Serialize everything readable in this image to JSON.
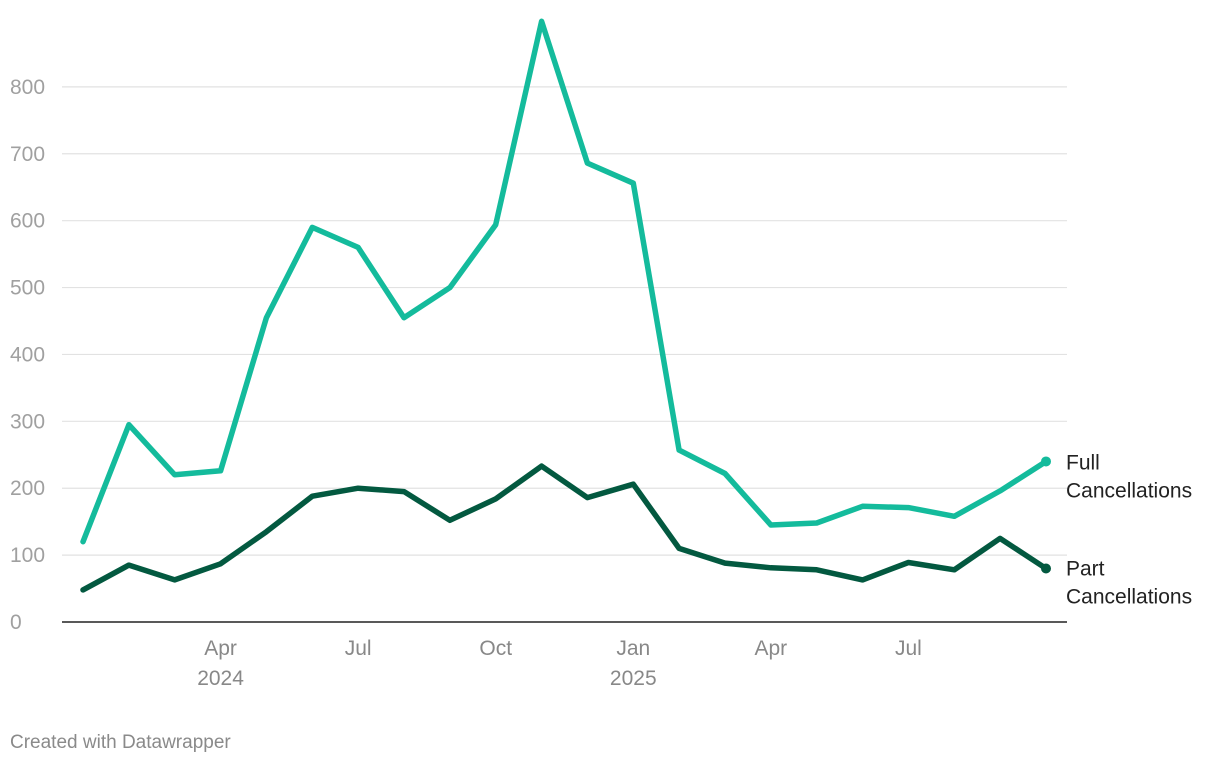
{
  "chart_data": {
    "type": "line",
    "title": "",
    "xlabel": "",
    "ylabel": "",
    "ylim": [
      0,
      900
    ],
    "yticks": [
      0,
      100,
      200,
      300,
      400,
      500,
      600,
      700,
      800
    ],
    "x": [
      "2024-01",
      "2024-02",
      "2024-03",
      "2024-04",
      "2024-05",
      "2024-06",
      "2024-07",
      "2024-08",
      "2024-09",
      "2024-10",
      "2024-11",
      "2024-12",
      "2025-01",
      "2025-02",
      "2025-03",
      "2025-04",
      "2025-05",
      "2025-06",
      "2025-07",
      "2025-08",
      "2025-09",
      "2025-10"
    ],
    "xticks": [
      {
        "index": 3,
        "label": "Apr",
        "sublabel": "2024"
      },
      {
        "index": 6,
        "label": "Jul",
        "sublabel": ""
      },
      {
        "index": 9,
        "label": "Oct",
        "sublabel": ""
      },
      {
        "index": 12,
        "label": "Jan",
        "sublabel": "2025"
      },
      {
        "index": 15,
        "label": "Apr",
        "sublabel": ""
      },
      {
        "index": 18,
        "label": "Jul",
        "sublabel": ""
      }
    ],
    "series": [
      {
        "name": "Full Cancellations",
        "label_lines": [
          "Full",
          "Cancellations"
        ],
        "color": "#14bb9c",
        "values": [
          120,
          295,
          220,
          226,
          455,
          590,
          560,
          455,
          500,
          594,
          898,
          686,
          656,
          257,
          222,
          145,
          148,
          173,
          171,
          158,
          196,
          240
        ]
      },
      {
        "name": "Part Cancellations",
        "label_lines": [
          "Part",
          "Cancellations"
        ],
        "color": "#035940",
        "values": [
          48,
          85,
          63,
          87,
          135,
          188,
          200,
          195,
          152,
          184,
          233,
          186,
          206,
          110,
          88,
          81,
          78,
          63,
          89,
          78,
          125,
          80
        ]
      }
    ]
  },
  "footer": {
    "credit": "Created with Datawrapper"
  }
}
